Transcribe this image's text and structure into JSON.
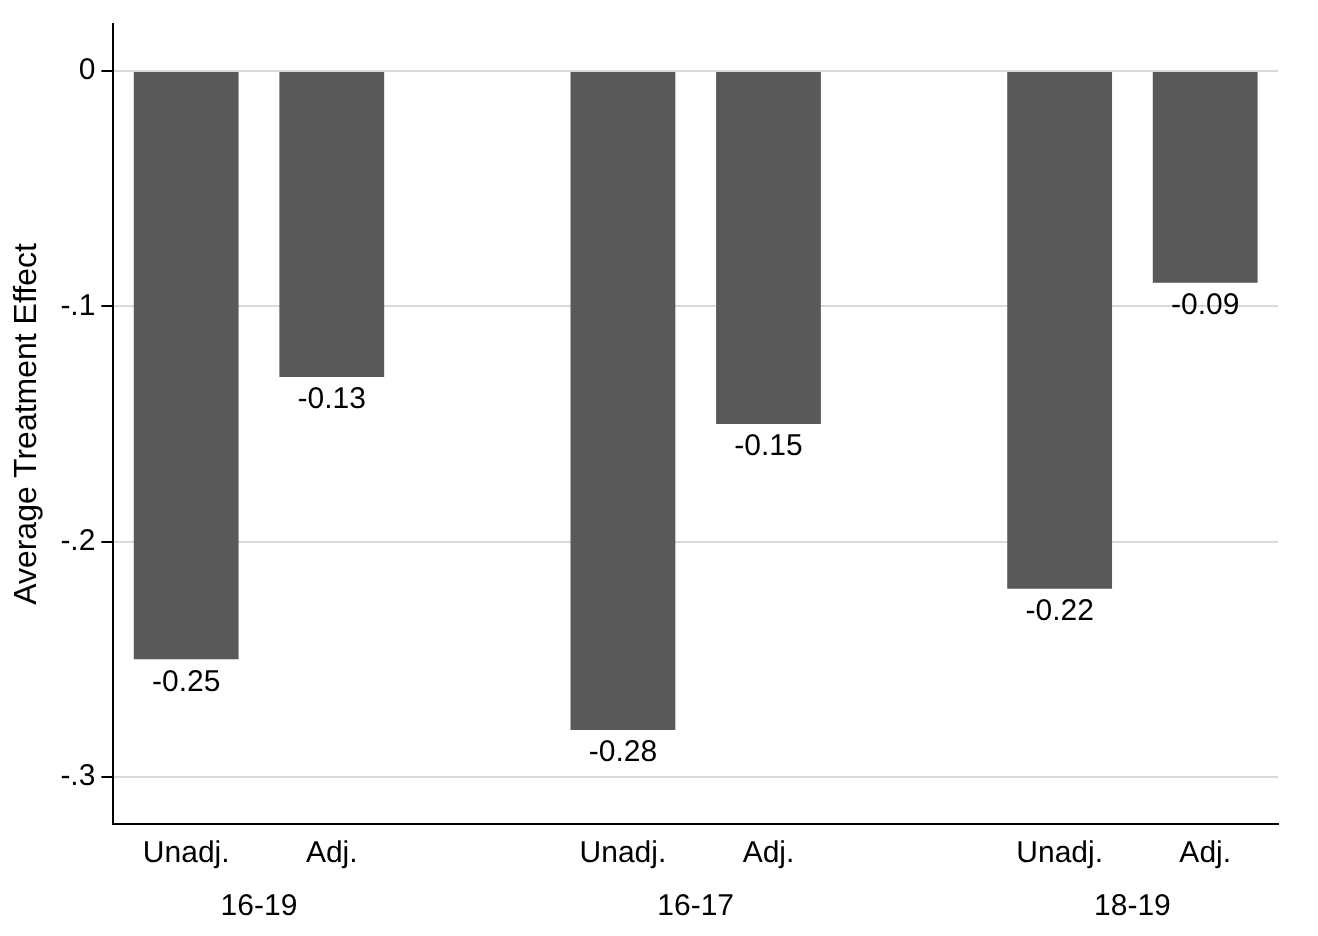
{
  "chart_data": {
    "type": "bar",
    "ylabel": "Average Treatment Effect",
    "categories": [
      "Unadj.",
      "Adj.",
      null,
      "Unadj.",
      "Adj.",
      null,
      "Unadj.",
      "Adj."
    ],
    "values": [
      -0.25,
      -0.13,
      null,
      -0.28,
      -0.15,
      null,
      -0.22,
      -0.09
    ],
    "color": "#595959",
    "ylim": [
      -0.32,
      0.02
    ],
    "yticks": [
      {
        "value": 0,
        "label": "0"
      },
      {
        "value": -0.1,
        "label": "-.1"
      },
      {
        "value": -0.2,
        "label": "-.2"
      },
      {
        "value": -0.3,
        "label": "-.3"
      }
    ],
    "grid": "y",
    "data_labels": true,
    "legend": false,
    "annotations": [
      "16-19",
      "16-17",
      "18-19"
    ]
  }
}
